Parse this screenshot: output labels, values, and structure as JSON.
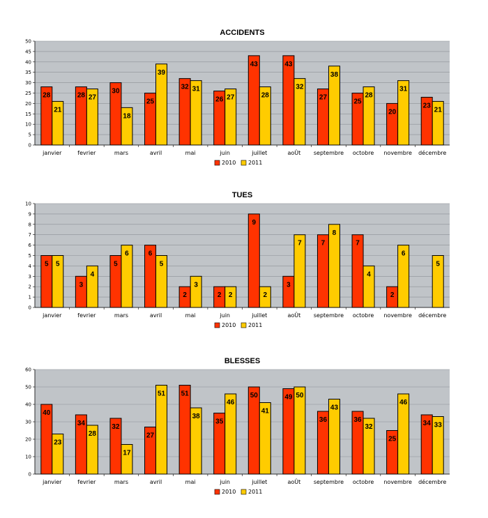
{
  "colors": {
    "y2010": "#ff3300",
    "y2011": "#ffcc00",
    "plot_bg": "#c0c4c8",
    "grid": "#8c9096"
  },
  "chart_data": [
    {
      "type": "bar",
      "title": "ACCIDENTS",
      "categories": [
        "janvier",
        "fevrier",
        "mars",
        "avril",
        "mai",
        "juin",
        "juillet",
        "aoÛt",
        "septembre",
        "octobre",
        "novembre",
        "décembre"
      ],
      "series": [
        {
          "name": "2010",
          "values": [
            28,
            28,
            30,
            25,
            32,
            26,
            43,
            43,
            27,
            25,
            20,
            23
          ]
        },
        {
          "name": "2011",
          "values": [
            21,
            27,
            18,
            39,
            31,
            27,
            28,
            32,
            38,
            28,
            31,
            21
          ]
        }
      ],
      "ylim": [
        0,
        50
      ],
      "ytick_step": 5,
      "grid": true,
      "legend": "bottom"
    },
    {
      "type": "bar",
      "title": "TUES",
      "categories": [
        "janvier",
        "fevrier",
        "mars",
        "avril",
        "mai",
        "juin",
        "juillet",
        "aoÛt",
        "septembre",
        "octobre",
        "novembre",
        "décembre"
      ],
      "series": [
        {
          "name": "2010",
          "values": [
            5,
            3,
            5,
            6,
            2,
            2,
            9,
            3,
            7,
            7,
            2,
            0
          ]
        },
        {
          "name": "2011",
          "values": [
            5,
            4,
            6,
            5,
            3,
            2,
            2,
            7,
            8,
            4,
            6,
            5
          ]
        }
      ],
      "ylim": [
        0,
        10
      ],
      "ytick_step": 1,
      "grid": true,
      "legend": "bottom"
    },
    {
      "type": "bar",
      "title": "BLESSES",
      "categories": [
        "janvier",
        "fevrier",
        "mars",
        "avril",
        "mai",
        "juin",
        "juillet",
        "aoÛt",
        "septembre",
        "octobre",
        "novembre",
        "décembre"
      ],
      "series": [
        {
          "name": "2010",
          "values": [
            40,
            34,
            32,
            27,
            51,
            35,
            50,
            49,
            36,
            36,
            25,
            34
          ]
        },
        {
          "name": "2011",
          "values": [
            23,
            28,
            17,
            51,
            38,
            46,
            41,
            50,
            43,
            32,
            46,
            33
          ]
        }
      ],
      "ylim": [
        0,
        60
      ],
      "ytick_step": 10,
      "grid": true,
      "legend": "bottom"
    }
  ]
}
